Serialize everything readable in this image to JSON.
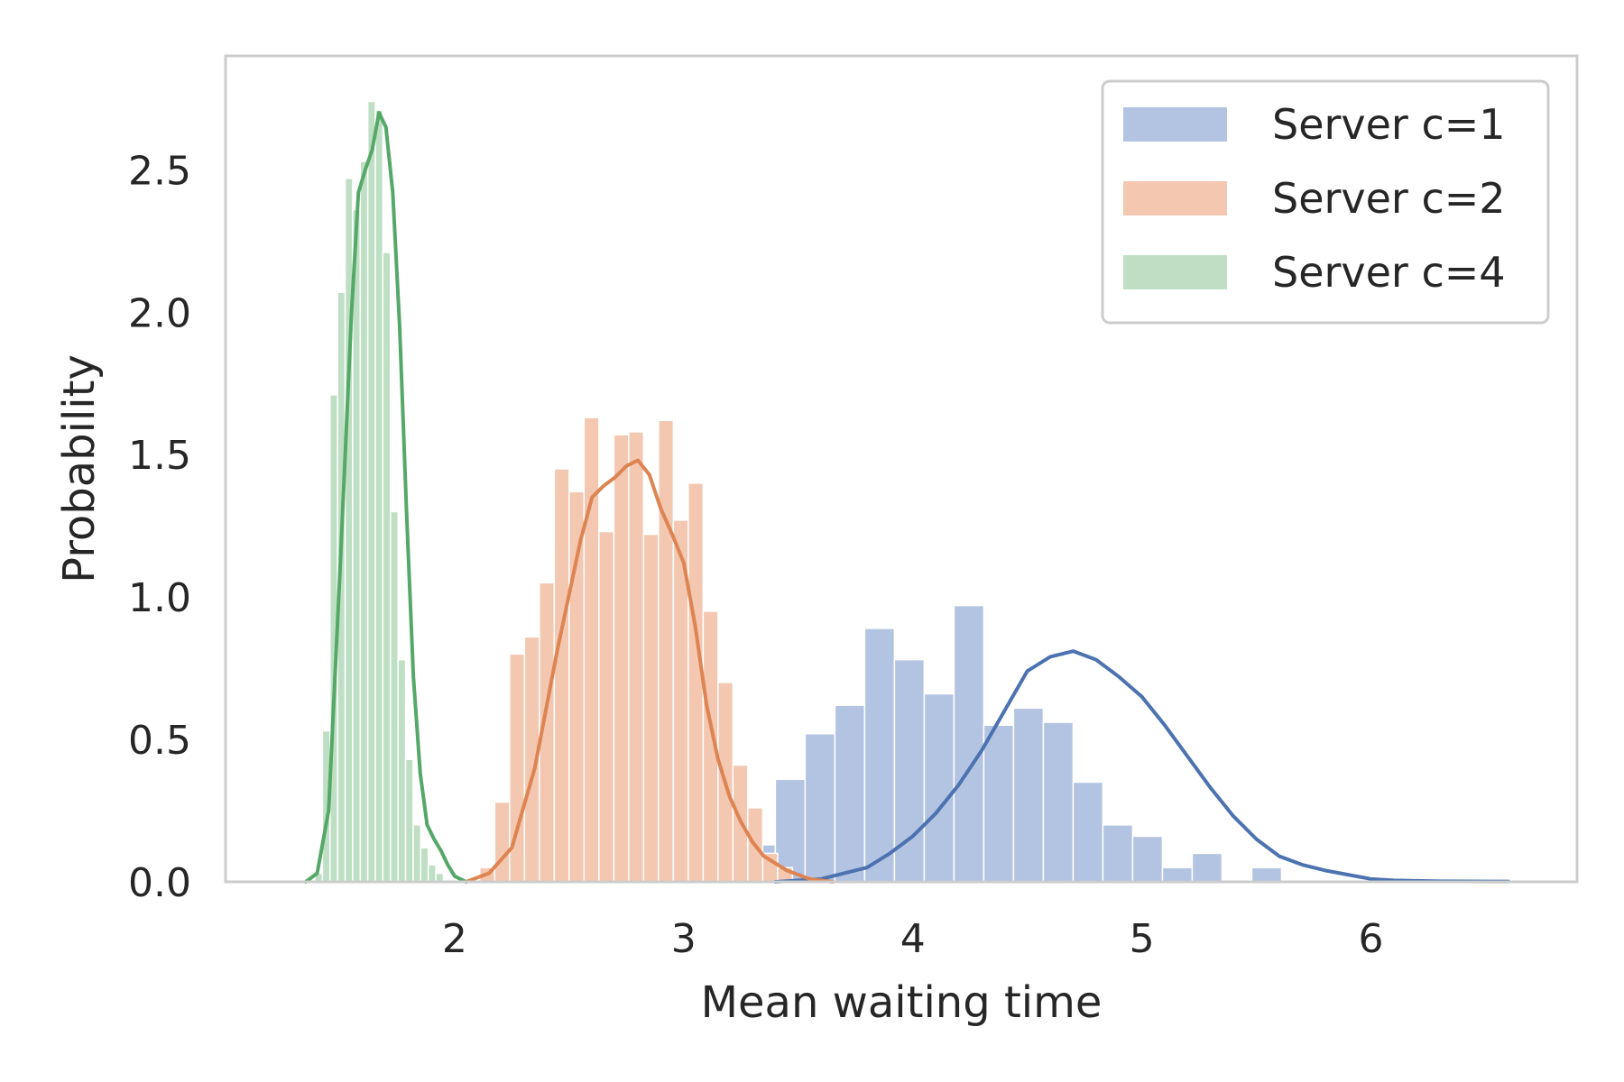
{
  "chart_data": {
    "type": "bar",
    "xlabel": "Mean waiting time",
    "ylabel": "Probability",
    "xlim": [
      1.0,
      6.9
    ],
    "ylim": [
      0.0,
      2.9
    ],
    "x_ticks": [
      2,
      3,
      4,
      5,
      6
    ],
    "y_ticks": [
      0.0,
      0.5,
      1.0,
      1.5,
      2.0,
      2.5
    ],
    "y_tick_labels": [
      "0.0",
      "0.5",
      "1.0",
      "1.5",
      "2.0",
      "2.5"
    ],
    "grid": false,
    "legend_position": "top-right",
    "series": [
      {
        "name": "Server c=1",
        "bar_color": "#b3c4e2",
        "line_color": "#4c72b0",
        "bin_width": 0.13,
        "bins": [
          {
            "x": 3.14,
            "h": 0.03
          },
          {
            "x": 3.27,
            "h": 0.13
          },
          {
            "x": 3.4,
            "h": 0.36
          },
          {
            "x": 3.53,
            "h": 0.52
          },
          {
            "x": 3.66,
            "h": 0.62
          },
          {
            "x": 3.79,
            "h": 0.89
          },
          {
            "x": 3.92,
            "h": 0.78
          },
          {
            "x": 4.05,
            "h": 0.66
          },
          {
            "x": 4.18,
            "h": 0.97
          },
          {
            "x": 4.31,
            "h": 0.55
          },
          {
            "x": 4.44,
            "h": 0.61
          },
          {
            "x": 4.57,
            "h": 0.56
          },
          {
            "x": 4.7,
            "h": 0.35
          },
          {
            "x": 4.83,
            "h": 0.2
          },
          {
            "x": 4.96,
            "h": 0.16
          },
          {
            "x": 5.09,
            "h": 0.05
          },
          {
            "x": 5.22,
            "h": 0.1
          },
          {
            "x": 5.48,
            "h": 0.05
          }
        ],
        "kde": [
          [
            3.4,
            0.0
          ],
          [
            3.6,
            0.01
          ],
          [
            3.8,
            0.05
          ],
          [
            3.9,
            0.1
          ],
          [
            4.0,
            0.16
          ],
          [
            4.1,
            0.24
          ],
          [
            4.2,
            0.34
          ],
          [
            4.3,
            0.46
          ],
          [
            4.4,
            0.6
          ],
          [
            4.5,
            0.74
          ],
          [
            4.6,
            0.79
          ],
          [
            4.7,
            0.81
          ],
          [
            4.8,
            0.78
          ],
          [
            4.9,
            0.72
          ],
          [
            5.0,
            0.65
          ],
          [
            5.1,
            0.55
          ],
          [
            5.2,
            0.44
          ],
          [
            5.3,
            0.33
          ],
          [
            5.4,
            0.23
          ],
          [
            5.5,
            0.15
          ],
          [
            5.6,
            0.09
          ],
          [
            5.7,
            0.06
          ],
          [
            5.8,
            0.04
          ],
          [
            5.9,
            0.025
          ],
          [
            6.0,
            0.01
          ],
          [
            6.1,
            0.005
          ],
          [
            6.3,
            0.002
          ],
          [
            6.6,
            0.001
          ]
        ]
      },
      {
        "name": "Server c=2",
        "bar_color": "#f3c7b0",
        "line_color": "#dd8452",
        "bin_width": 0.065,
        "bins": [
          {
            "x": 2.11,
            "h": 0.05
          },
          {
            "x": 2.175,
            "h": 0.28
          },
          {
            "x": 2.24,
            "h": 0.8
          },
          {
            "x": 2.305,
            "h": 0.86
          },
          {
            "x": 2.37,
            "h": 1.05
          },
          {
            "x": 2.435,
            "h": 1.45
          },
          {
            "x": 2.5,
            "h": 1.37
          },
          {
            "x": 2.565,
            "h": 1.63
          },
          {
            "x": 2.63,
            "h": 1.23
          },
          {
            "x": 2.695,
            "h": 1.57
          },
          {
            "x": 2.76,
            "h": 1.58
          },
          {
            "x": 2.825,
            "h": 1.22
          },
          {
            "x": 2.89,
            "h": 1.62
          },
          {
            "x": 2.955,
            "h": 1.27
          },
          {
            "x": 3.02,
            "h": 1.4
          },
          {
            "x": 3.085,
            "h": 0.95
          },
          {
            "x": 3.15,
            "h": 0.7
          },
          {
            "x": 3.215,
            "h": 0.41
          },
          {
            "x": 3.28,
            "h": 0.26
          },
          {
            "x": 3.345,
            "h": 0.1
          },
          {
            "x": 3.41,
            "h": 0.05
          }
        ],
        "kde": [
          [
            2.05,
            0.0
          ],
          [
            2.15,
            0.03
          ],
          [
            2.25,
            0.12
          ],
          [
            2.35,
            0.4
          ],
          [
            2.45,
            0.82
          ],
          [
            2.55,
            1.2
          ],
          [
            2.6,
            1.35
          ],
          [
            2.65,
            1.39
          ],
          [
            2.7,
            1.42
          ],
          [
            2.75,
            1.46
          ],
          [
            2.8,
            1.48
          ],
          [
            2.85,
            1.43
          ],
          [
            2.9,
            1.31
          ],
          [
            2.95,
            1.22
          ],
          [
            3.0,
            1.12
          ],
          [
            3.05,
            0.9
          ],
          [
            3.1,
            0.62
          ],
          [
            3.15,
            0.43
          ],
          [
            3.2,
            0.3
          ],
          [
            3.25,
            0.21
          ],
          [
            3.3,
            0.14
          ],
          [
            3.35,
            0.09
          ],
          [
            3.45,
            0.04
          ],
          [
            3.55,
            0.01
          ],
          [
            3.65,
            0.0
          ]
        ]
      },
      {
        "name": "Server c=4",
        "bar_color": "#bfdfc4",
        "line_color": "#55a868",
        "bin_width": 0.033,
        "bins": [
          {
            "x": 1.39,
            "h": 0.03
          },
          {
            "x": 1.423,
            "h": 0.53
          },
          {
            "x": 1.456,
            "h": 1.71
          },
          {
            "x": 1.489,
            "h": 2.07
          },
          {
            "x": 1.522,
            "h": 2.47
          },
          {
            "x": 1.555,
            "h": 2.36
          },
          {
            "x": 1.588,
            "h": 2.53
          },
          {
            "x": 1.621,
            "h": 2.74
          },
          {
            "x": 1.654,
            "h": 2.71
          },
          {
            "x": 1.687,
            "h": 2.21
          },
          {
            "x": 1.72,
            "h": 1.3
          },
          {
            "x": 1.753,
            "h": 0.78
          },
          {
            "x": 1.786,
            "h": 0.43
          },
          {
            "x": 1.819,
            "h": 0.2
          },
          {
            "x": 1.852,
            "h": 0.12
          },
          {
            "x": 1.885,
            "h": 0.06
          },
          {
            "x": 1.918,
            "h": 0.03
          }
        ],
        "kde": [
          [
            1.35,
            0.0
          ],
          [
            1.4,
            0.03
          ],
          [
            1.45,
            0.25
          ],
          [
            1.5,
            1.1
          ],
          [
            1.55,
            2.0
          ],
          [
            1.58,
            2.42
          ],
          [
            1.61,
            2.5
          ],
          [
            1.64,
            2.57
          ],
          [
            1.67,
            2.7
          ],
          [
            1.7,
            2.65
          ],
          [
            1.73,
            2.42
          ],
          [
            1.76,
            1.95
          ],
          [
            1.79,
            1.3
          ],
          [
            1.82,
            0.72
          ],
          [
            1.85,
            0.38
          ],
          [
            1.88,
            0.2
          ],
          [
            1.91,
            0.15
          ],
          [
            1.94,
            0.11
          ],
          [
            1.97,
            0.06
          ],
          [
            2.0,
            0.02
          ],
          [
            2.05,
            0.0
          ]
        ]
      }
    ]
  }
}
